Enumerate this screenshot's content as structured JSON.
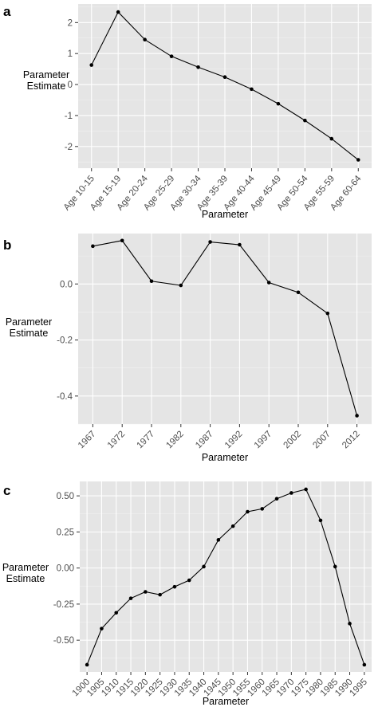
{
  "chart_data": [
    {
      "type": "line",
      "panel_label": "a",
      "categories": [
        "Age 10-15",
        "Age 15-19",
        "Age 20-24",
        "Age 25-29",
        "Age 30-34",
        "Age 35-39",
        "Age 40-44",
        "Age 45-49",
        "Age 50-54",
        "Age 55-59",
        "Age 60-64"
      ],
      "values": [
        0.63,
        2.34,
        1.45,
        0.91,
        0.56,
        0.24,
        -0.15,
        -0.62,
        -1.16,
        -1.75,
        -2.43
      ],
      "xlabel": "Parameter",
      "ylabel_lines": [
        "Parameter",
        "Estimate"
      ],
      "ylim": [
        -2.7,
        2.6
      ],
      "yticks": [
        2,
        1,
        0,
        -1,
        -2
      ],
      "ytick_labels": [
        "2",
        "1",
        "0",
        "-1",
        "-2"
      ],
      "grid": true
    },
    {
      "type": "line",
      "panel_label": "b",
      "categories": [
        "1967",
        "1972",
        "1977",
        "1982",
        "1987",
        "1992",
        "1997",
        "2002",
        "2007",
        "2012"
      ],
      "values": [
        0.135,
        0.155,
        0.01,
        -0.005,
        0.15,
        0.14,
        0.005,
        -0.03,
        -0.105,
        -0.47
      ],
      "xlabel": "Parameter",
      "ylabel_lines": [
        "Parameter",
        "Estimate"
      ],
      "ylim": [
        -0.5,
        0.18
      ],
      "yticks": [
        0.0,
        -0.2,
        -0.4
      ],
      "ytick_labels": [
        "0.0",
        "-0.2",
        "-0.4"
      ],
      "grid": true
    },
    {
      "type": "line",
      "panel_label": "c",
      "categories": [
        "1900",
        "1905",
        "1910",
        "1915",
        "1920",
        "1925",
        "1930",
        "1935",
        "1940",
        "1945",
        "1950",
        "1955",
        "1960",
        "1965",
        "1970",
        "1975",
        "1980",
        "1985",
        "1990",
        "1995"
      ],
      "values": [
        -0.67,
        -0.42,
        -0.31,
        -0.21,
        -0.165,
        -0.185,
        -0.13,
        -0.085,
        0.01,
        0.195,
        0.29,
        0.39,
        0.41,
        0.48,
        0.52,
        0.545,
        0.33,
        0.01,
        -0.385,
        -0.67
      ],
      "xlabel": "Parameter",
      "ylabel_lines": [
        "Parameter",
        "Estimate"
      ],
      "ylim": [
        -0.72,
        0.6
      ],
      "yticks": [
        0.5,
        0.25,
        0.0,
        -0.25,
        -0.5
      ],
      "ytick_labels": [
        "0.50",
        "0.25",
        "0.00",
        "-0.25",
        "-0.50"
      ],
      "grid": true
    }
  ]
}
